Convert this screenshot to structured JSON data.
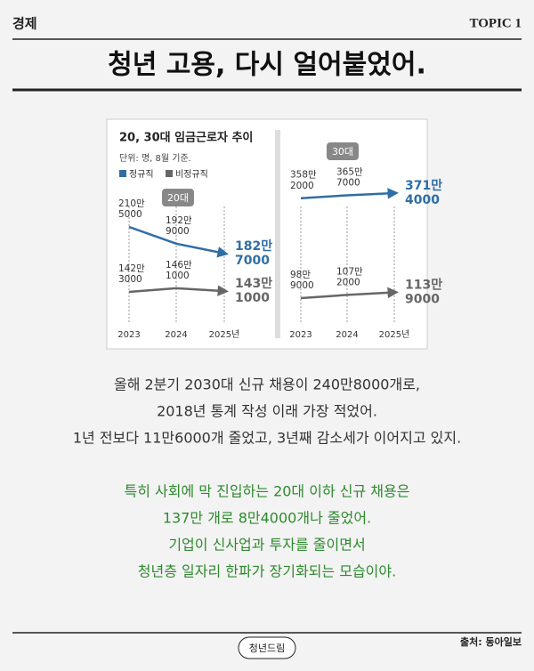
{
  "header": {
    "section": "경제",
    "topic": "TOPIC 1",
    "title": "청년 고용, 다시 얼어붙었어."
  },
  "chart_box": {
    "title": "20, 30대 임금근로자 추이",
    "unit": "단위: 명, 8월 기준."
  },
  "chart_data": [
    {
      "type": "line",
      "title": "20대",
      "categories": [
        "2023",
        "2024",
        "2025년"
      ],
      "series": [
        {
          "name": "정규직",
          "color": "#2f6ea5",
          "values": [
            2105000,
            1929000,
            1827000
          ],
          "value_labels": [
            "210만 5000",
            "192만 9000",
            "182만 7000"
          ]
        },
        {
          "name": "비정규직",
          "color": "#666666",
          "values": [
            1423000,
            1461000,
            1431000
          ],
          "value_labels": [
            "142만 3000",
            "146만 1000",
            "143만 1000"
          ]
        }
      ]
    },
    {
      "type": "line",
      "title": "30대",
      "categories": [
        "2023",
        "2024",
        "2025년"
      ],
      "series": [
        {
          "color": "#2f6ea5",
          "values": [
            3582000,
            3657000,
            3714000
          ],
          "value_labels": [
            "358만 2000",
            "365만 7000",
            "371만 4000"
          ]
        },
        {
          "color": "#666666",
          "values": [
            989000,
            1072000,
            1139000
          ],
          "value_labels": [
            "98만 9000",
            "107만 2000",
            "113만 9000"
          ]
        }
      ]
    }
  ],
  "body": [
    "올해 2분기 2030대 신규 채용이 240만8000개로,",
    "2018년 통계 작성 이래 가장 적었어.",
    "1년 전보다 11만6000개 줄었고, 3년째 감소세가 이어지고 있지."
  ],
  "highlight": [
    "특히 사회에 막 진입하는 20대 이하 신규 채용은",
    "137만 개로 8만4000개나 줄었어.",
    "기업이 신사업과 투자를 줄이면서",
    "청년층 일자리 한파가 장기화되는 모습이야."
  ],
  "footer": {
    "brand": "청년드림",
    "source": "출처: 동아일보"
  }
}
